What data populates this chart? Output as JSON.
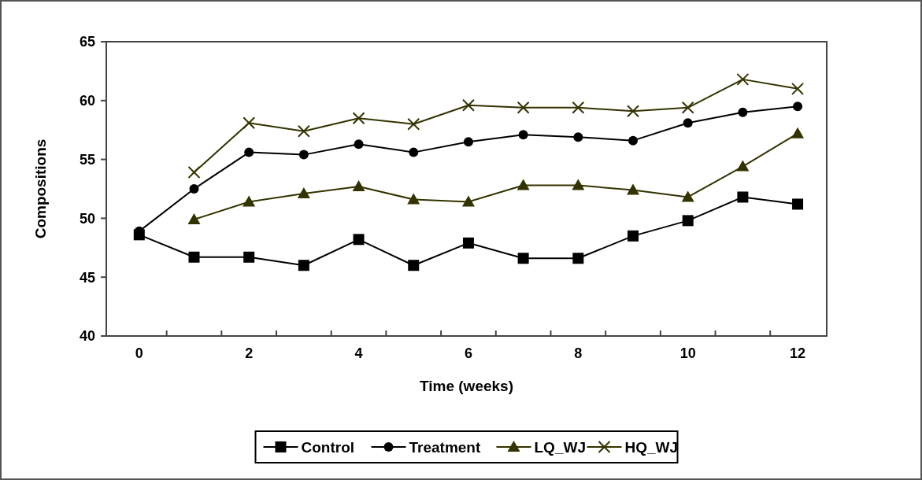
{
  "chart_data": {
    "type": "line",
    "xlabel": "Time (weeks)",
    "ylabel": "Compositions",
    "categories": [
      "0",
      null,
      "2",
      null,
      "4",
      null,
      "6",
      null,
      "8",
      null,
      "10",
      null,
      "12"
    ],
    "ylim": [
      40,
      65
    ],
    "yticks": [
      40,
      45,
      50,
      55,
      60,
      65
    ],
    "grid": false,
    "legend": "bottom",
    "series": [
      {
        "name": "Control",
        "color": "#000000",
        "marker": "square",
        "values": [
          48.6,
          46.7,
          46.7,
          46.0,
          48.2,
          46.0,
          47.9,
          46.6,
          46.6,
          48.5,
          49.8,
          51.8,
          51.2
        ]
      },
      {
        "name": "Treatment",
        "color": "#000000",
        "marker": "circle",
        "values": [
          48.9,
          52.5,
          55.6,
          55.4,
          56.3,
          55.6,
          56.5,
          57.1,
          56.9,
          56.6,
          58.1,
          59.0,
          59.5
        ]
      },
      {
        "name": "LQ_WJ",
        "color": "#333300",
        "marker": "triangle",
        "values": [
          null,
          49.9,
          51.4,
          52.1,
          52.7,
          51.6,
          51.4,
          52.8,
          52.8,
          52.4,
          51.8,
          54.4,
          57.2
        ]
      },
      {
        "name": "HQ_WJ",
        "color": "#333300",
        "marker": "cross",
        "values": [
          null,
          53.9,
          58.1,
          57.4,
          58.5,
          58.0,
          59.6,
          59.4,
          59.4,
          59.1,
          59.4,
          61.8,
          61.0
        ]
      }
    ]
  }
}
